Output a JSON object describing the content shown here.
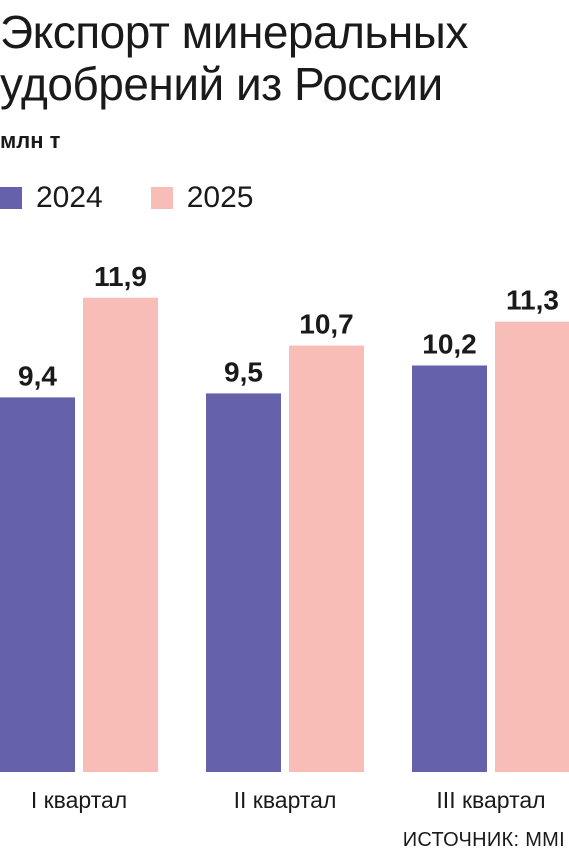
{
  "title": "Экспорт минеральных удобрений из России",
  "unit": "млн т",
  "source": "ИСТОЧНИК: MMI",
  "colors": {
    "s2024": "#6561ab",
    "s2025": "#f8bdb6"
  },
  "chart_data": {
    "type": "bar",
    "categories": [
      "I квартал",
      "II квартал",
      "III квартал"
    ],
    "series": [
      {
        "name": "2024",
        "values": [
          9.4,
          9.5,
          10.2
        ],
        "labels": [
          "9,4",
          "9,5",
          "10,2"
        ]
      },
      {
        "name": "2025",
        "values": [
          11.9,
          10.7,
          11.3
        ],
        "labels": [
          "11,9",
          "10,7",
          "11,3"
        ]
      }
    ],
    "ylim": [
      0,
      13.6
    ],
    "grid": false,
    "legend": "top-left"
  }
}
